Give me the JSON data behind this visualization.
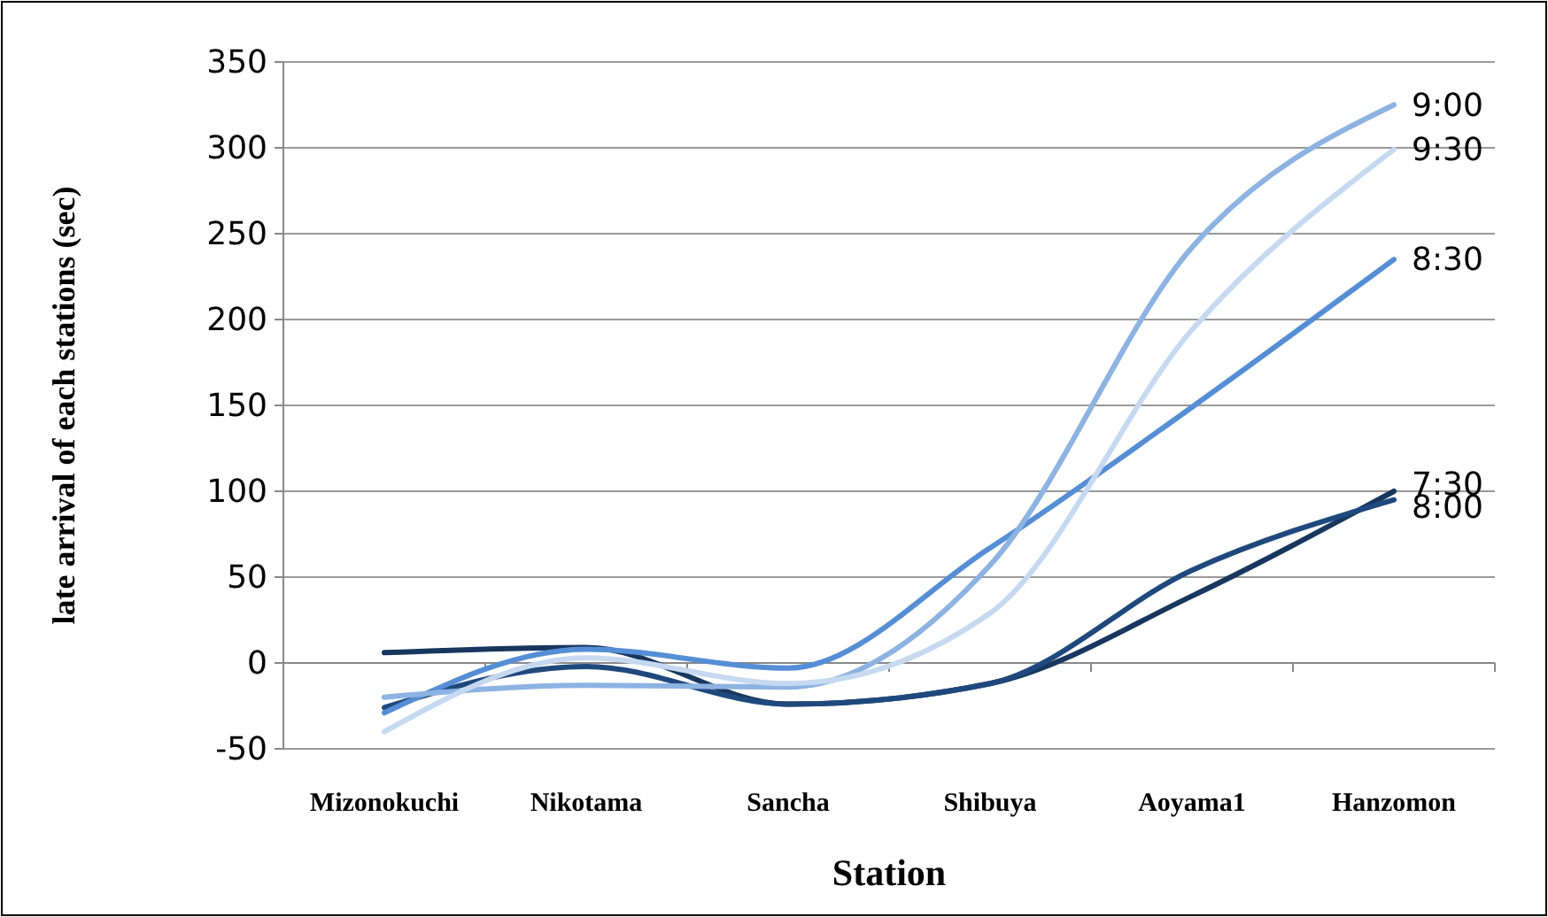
{
  "chart_data": {
    "type": "line",
    "xlabel": "Station",
    "ylabel": "late arrival of each stations (sec)",
    "categories": [
      "Mizonokuchi",
      "Nikotama",
      "Sancha",
      "Shibuya",
      "Aoyama1",
      "Hanzomon"
    ],
    "series": [
      {
        "name": "7:30",
        "color": "#17375e",
        "values": [
          6,
          9,
          -24,
          -12,
          39,
          100
        ]
      },
      {
        "name": "8:00",
        "color": "#1f497d",
        "values": [
          -26,
          -2,
          -24,
          -12,
          54,
          95
        ]
      },
      {
        "name": "8:30",
        "color": "#558ed5",
        "values": [
          -29,
          8,
          -3,
          67,
          149,
          235
        ]
      },
      {
        "name": "9:00",
        "color": "#8db3e2",
        "values": [
          -20,
          -13,
          -14,
          57,
          242,
          325
        ]
      },
      {
        "name": "9:30",
        "color": "#c6d9f1",
        "values": [
          -40,
          3,
          -12,
          29,
          194,
          299
        ]
      }
    ],
    "ylim": [
      -50,
      350
    ],
    "yticks": [
      -50,
      0,
      50,
      100,
      150,
      200,
      250,
      300,
      350
    ],
    "grid": "y",
    "legend": false,
    "marker": "none",
    "line_style": "solid"
  }
}
